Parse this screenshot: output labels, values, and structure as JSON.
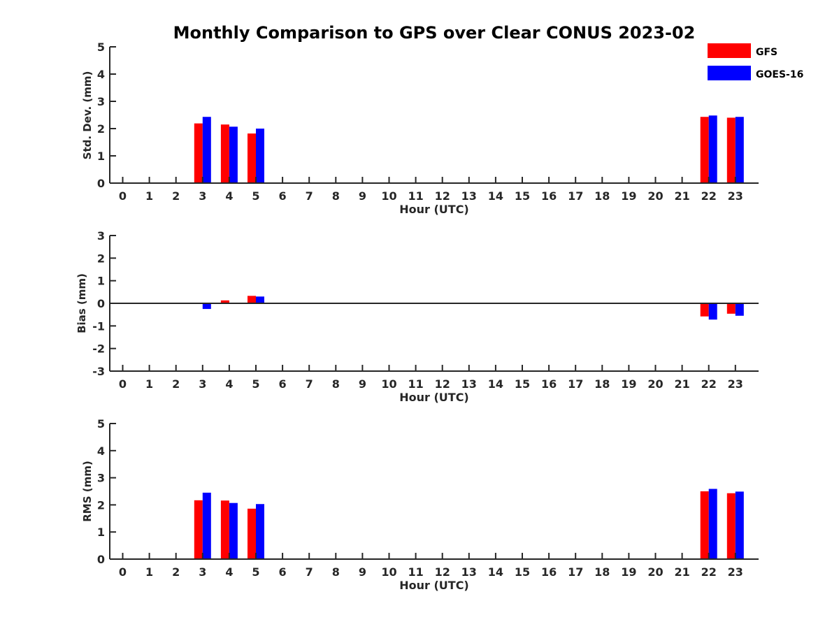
{
  "chart_data": [
    {
      "type": "bar",
      "title": "Monthly Comparison to GPS over Clear CONUS 2023-02",
      "xlabel": "Hour (UTC)",
      "ylabel": "Std. Dev. (mm)",
      "ylim": [
        0,
        5
      ],
      "yticks": [
        "0",
        "1",
        "2",
        "3",
        "4",
        "5"
      ],
      "categories": [
        "0",
        "1",
        "2",
        "3",
        "4",
        "5",
        "6",
        "7",
        "8",
        "9",
        "10",
        "11",
        "12",
        "13",
        "14",
        "15",
        "16",
        "17",
        "18",
        "19",
        "20",
        "21",
        "22",
        "23"
      ],
      "series": [
        {
          "name": "GFS",
          "color": "#ff0000",
          "values": [
            null,
            null,
            null,
            2.19,
            2.15,
            1.82,
            null,
            null,
            null,
            null,
            null,
            null,
            null,
            null,
            null,
            null,
            null,
            null,
            null,
            null,
            null,
            null,
            2.43,
            2.4
          ]
        },
        {
          "name": "GOES-16",
          "color": "#0000ff",
          "values": [
            null,
            null,
            null,
            2.43,
            2.07,
            2.0,
            null,
            null,
            null,
            null,
            null,
            null,
            null,
            null,
            null,
            null,
            null,
            null,
            null,
            null,
            null,
            null,
            2.48,
            2.43
          ]
        }
      ],
      "legend": "top-right"
    },
    {
      "type": "bar",
      "xlabel": "Hour (UTC)",
      "ylabel": "Bias (mm)",
      "ylim": [
        -3,
        3
      ],
      "yticks": [
        "-3",
        "-2",
        "-1",
        "0",
        "1",
        "2",
        "3"
      ],
      "zero_line": true,
      "categories": [
        "0",
        "1",
        "2",
        "3",
        "4",
        "5",
        "6",
        "7",
        "8",
        "9",
        "10",
        "11",
        "12",
        "13",
        "14",
        "15",
        "16",
        "17",
        "18",
        "19",
        "20",
        "21",
        "22",
        "23"
      ],
      "series": [
        {
          "name": "GFS",
          "color": "#ff0000",
          "values": [
            null,
            null,
            null,
            0.03,
            0.13,
            0.33,
            null,
            null,
            null,
            null,
            null,
            null,
            null,
            null,
            null,
            null,
            null,
            null,
            null,
            null,
            null,
            null,
            -0.58,
            -0.46
          ]
        },
        {
          "name": "GOES-16",
          "color": "#0000ff",
          "values": [
            null,
            null,
            null,
            -0.25,
            0.03,
            0.3,
            null,
            null,
            null,
            null,
            null,
            null,
            null,
            null,
            null,
            null,
            null,
            null,
            null,
            null,
            null,
            null,
            -0.72,
            -0.55
          ]
        }
      ]
    },
    {
      "type": "bar",
      "xlabel": "Hour (UTC)",
      "ylabel": "RMS (mm)",
      "ylim": [
        0,
        5
      ],
      "yticks": [
        "0",
        "1",
        "2",
        "3",
        "4",
        "5"
      ],
      "categories": [
        "0",
        "1",
        "2",
        "3",
        "4",
        "5",
        "6",
        "7",
        "8",
        "9",
        "10",
        "11",
        "12",
        "13",
        "14",
        "15",
        "16",
        "17",
        "18",
        "19",
        "20",
        "21",
        "22",
        "23"
      ],
      "series": [
        {
          "name": "GFS",
          "color": "#ff0000",
          "values": [
            null,
            null,
            null,
            2.17,
            2.16,
            1.86,
            null,
            null,
            null,
            null,
            null,
            null,
            null,
            null,
            null,
            null,
            null,
            null,
            null,
            null,
            null,
            null,
            2.5,
            2.43
          ]
        },
        {
          "name": "GOES-16",
          "color": "#0000ff",
          "values": [
            null,
            null,
            null,
            2.45,
            2.07,
            2.03,
            null,
            null,
            null,
            null,
            null,
            null,
            null,
            null,
            null,
            null,
            null,
            null,
            null,
            null,
            null,
            null,
            2.59,
            2.49
          ]
        }
      ]
    }
  ]
}
